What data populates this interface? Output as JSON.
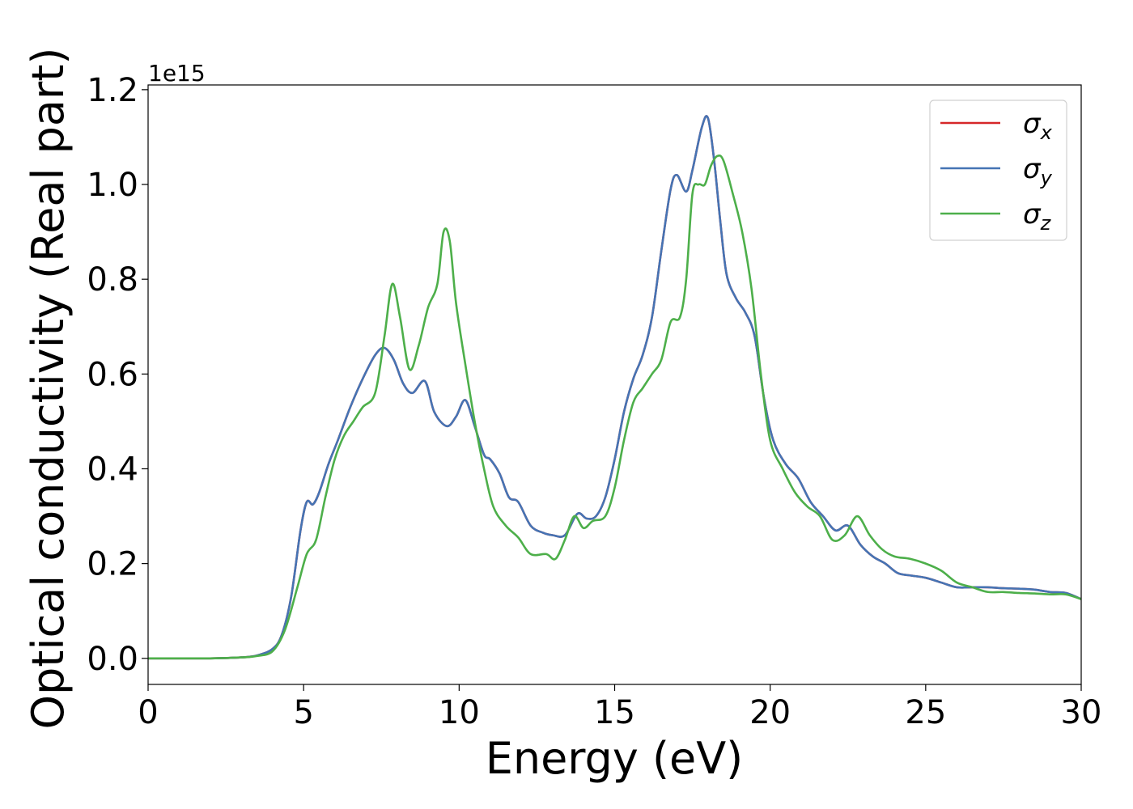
{
  "chart_data": {
    "type": "line",
    "xlabel": "Energy (eV)",
    "ylabel": "Optical conductivity (Real part)",
    "y_offset_label": "1e15",
    "xlim": [
      0,
      30
    ],
    "ylim": [
      -0.055,
      1.21
    ],
    "y_scale_factor": 1000000000000000.0,
    "x_ticks": [
      0,
      5,
      10,
      15,
      20,
      25,
      30
    ],
    "x_tick_labels": [
      "0",
      "5",
      "10",
      "15",
      "20",
      "25",
      "30"
    ],
    "y_ticks": [
      0.0,
      0.2,
      0.4,
      0.6,
      0.8,
      1.0,
      1.2
    ],
    "y_tick_labels": [
      "0.0",
      "0.2",
      "0.4",
      "0.6",
      "0.8",
      "1.0",
      "1.2"
    ],
    "grid": false,
    "legend_position": "top-right",
    "series": [
      {
        "name": "σx",
        "symbol": "σ",
        "subscript": "x",
        "color": "#d62728",
        "x": [
          0,
          1,
          2,
          3,
          3.5,
          4,
          4.3,
          4.6,
          4.9,
          5.1,
          5.3,
          5.5,
          5.8,
          6.1,
          6.5,
          6.9,
          7.3,
          7.6,
          7.9,
          8.2,
          8.5,
          8.9,
          9.2,
          9.6,
          9.9,
          10.2,
          10.5,
          10.8,
          11.0,
          11.3,
          11.6,
          11.9,
          12.3,
          12.7,
          13.0,
          13.4,
          13.8,
          14.1,
          14.4,
          14.7,
          15.0,
          15.3,
          15.6,
          15.9,
          16.2,
          16.5,
          16.8,
          17.0,
          17.3,
          17.5,
          17.8,
          18.0,
          18.2,
          18.4,
          18.6,
          18.9,
          19.2,
          19.5,
          19.8,
          20.1,
          20.5,
          20.9,
          21.3,
          21.7,
          22.1,
          22.5,
          22.9,
          23.3,
          23.7,
          24.1,
          24.5,
          25.0,
          25.5,
          26.0,
          26.5,
          27.0,
          27.5,
          28.0,
          28.5,
          29.0,
          29.5,
          30.0
        ],
        "y": [
          0.0,
          0.0,
          0.0,
          0.002,
          0.006,
          0.02,
          0.05,
          0.13,
          0.27,
          0.33,
          0.325,
          0.35,
          0.41,
          0.46,
          0.53,
          0.59,
          0.64,
          0.655,
          0.63,
          0.58,
          0.56,
          0.585,
          0.52,
          0.49,
          0.51,
          0.545,
          0.49,
          0.43,
          0.42,
          0.39,
          0.34,
          0.33,
          0.28,
          0.265,
          0.26,
          0.26,
          0.305,
          0.295,
          0.3,
          0.34,
          0.42,
          0.52,
          0.59,
          0.64,
          0.72,
          0.86,
          0.99,
          1.02,
          0.985,
          1.03,
          1.12,
          1.14,
          1.05,
          0.92,
          0.81,
          0.76,
          0.73,
          0.68,
          0.55,
          0.46,
          0.41,
          0.38,
          0.33,
          0.3,
          0.27,
          0.28,
          0.24,
          0.215,
          0.2,
          0.18,
          0.175,
          0.17,
          0.16,
          0.15,
          0.15,
          0.15,
          0.148,
          0.147,
          0.145,
          0.14,
          0.138,
          0.125
        ]
      },
      {
        "name": "σy",
        "symbol": "σ",
        "subscript": "y",
        "color": "#4574b4",
        "x": [
          0,
          1,
          2,
          3,
          3.5,
          4,
          4.3,
          4.6,
          4.9,
          5.1,
          5.3,
          5.5,
          5.8,
          6.1,
          6.5,
          6.9,
          7.3,
          7.6,
          7.9,
          8.2,
          8.5,
          8.9,
          9.2,
          9.6,
          9.9,
          10.2,
          10.5,
          10.8,
          11.0,
          11.3,
          11.6,
          11.9,
          12.3,
          12.7,
          13.0,
          13.4,
          13.8,
          14.1,
          14.4,
          14.7,
          15.0,
          15.3,
          15.6,
          15.9,
          16.2,
          16.5,
          16.8,
          17.0,
          17.3,
          17.5,
          17.8,
          18.0,
          18.2,
          18.4,
          18.6,
          18.9,
          19.2,
          19.5,
          19.8,
          20.1,
          20.5,
          20.9,
          21.3,
          21.7,
          22.1,
          22.5,
          22.9,
          23.3,
          23.7,
          24.1,
          24.5,
          25.0,
          25.5,
          26.0,
          26.5,
          27.0,
          27.5,
          28.0,
          28.5,
          29.0,
          29.5,
          30.0
        ],
        "y": [
          0.0,
          0.0,
          0.0,
          0.002,
          0.006,
          0.02,
          0.05,
          0.13,
          0.27,
          0.33,
          0.325,
          0.35,
          0.41,
          0.46,
          0.53,
          0.59,
          0.64,
          0.655,
          0.63,
          0.58,
          0.56,
          0.585,
          0.52,
          0.49,
          0.51,
          0.545,
          0.49,
          0.43,
          0.42,
          0.39,
          0.34,
          0.33,
          0.28,
          0.265,
          0.26,
          0.26,
          0.305,
          0.295,
          0.3,
          0.34,
          0.42,
          0.52,
          0.59,
          0.64,
          0.72,
          0.86,
          0.99,
          1.02,
          0.985,
          1.03,
          1.12,
          1.14,
          1.05,
          0.92,
          0.81,
          0.76,
          0.73,
          0.68,
          0.55,
          0.46,
          0.41,
          0.38,
          0.33,
          0.3,
          0.27,
          0.28,
          0.24,
          0.215,
          0.2,
          0.18,
          0.175,
          0.17,
          0.16,
          0.15,
          0.15,
          0.15,
          0.148,
          0.147,
          0.145,
          0.14,
          0.138,
          0.125
        ]
      },
      {
        "name": "σz",
        "symbol": "σ",
        "subscript": "z",
        "color": "#4daf4a",
        "x": [
          0,
          1,
          2,
          3,
          3.5,
          4,
          4.4,
          4.8,
          5.1,
          5.4,
          5.7,
          6.0,
          6.3,
          6.6,
          6.9,
          7.3,
          7.6,
          7.85,
          8.1,
          8.4,
          8.7,
          9.0,
          9.3,
          9.5,
          9.7,
          9.9,
          10.2,
          10.5,
          10.8,
          11.1,
          11.5,
          11.9,
          12.3,
          12.8,
          13.1,
          13.4,
          13.7,
          14.0,
          14.3,
          14.7,
          15.0,
          15.3,
          15.6,
          15.9,
          16.2,
          16.5,
          16.8,
          17.1,
          17.3,
          17.5,
          17.7,
          17.9,
          18.1,
          18.3,
          18.5,
          18.8,
          19.1,
          19.4,
          19.7,
          20.0,
          20.4,
          20.8,
          21.2,
          21.6,
          22.0,
          22.4,
          22.8,
          23.2,
          23.6,
          24.0,
          24.5,
          25.0,
          25.5,
          26.0,
          26.5,
          27.0,
          27.5,
          28.0,
          28.5,
          29.0,
          29.5,
          30.0
        ],
        "y": [
          0.0,
          0.0,
          0.0,
          0.002,
          0.005,
          0.015,
          0.06,
          0.15,
          0.22,
          0.25,
          0.34,
          0.42,
          0.47,
          0.5,
          0.53,
          0.56,
          0.68,
          0.79,
          0.72,
          0.61,
          0.66,
          0.74,
          0.79,
          0.9,
          0.88,
          0.75,
          0.62,
          0.5,
          0.4,
          0.32,
          0.28,
          0.255,
          0.22,
          0.22,
          0.21,
          0.25,
          0.3,
          0.275,
          0.29,
          0.3,
          0.36,
          0.46,
          0.54,
          0.57,
          0.6,
          0.63,
          0.71,
          0.72,
          0.8,
          0.98,
          1.0,
          1.0,
          1.04,
          1.06,
          1.05,
          0.98,
          0.9,
          0.78,
          0.6,
          0.46,
          0.4,
          0.35,
          0.32,
          0.3,
          0.25,
          0.26,
          0.3,
          0.26,
          0.23,
          0.215,
          0.21,
          0.2,
          0.185,
          0.16,
          0.15,
          0.14,
          0.14,
          0.138,
          0.137,
          0.135,
          0.135,
          0.125
        ]
      }
    ]
  }
}
